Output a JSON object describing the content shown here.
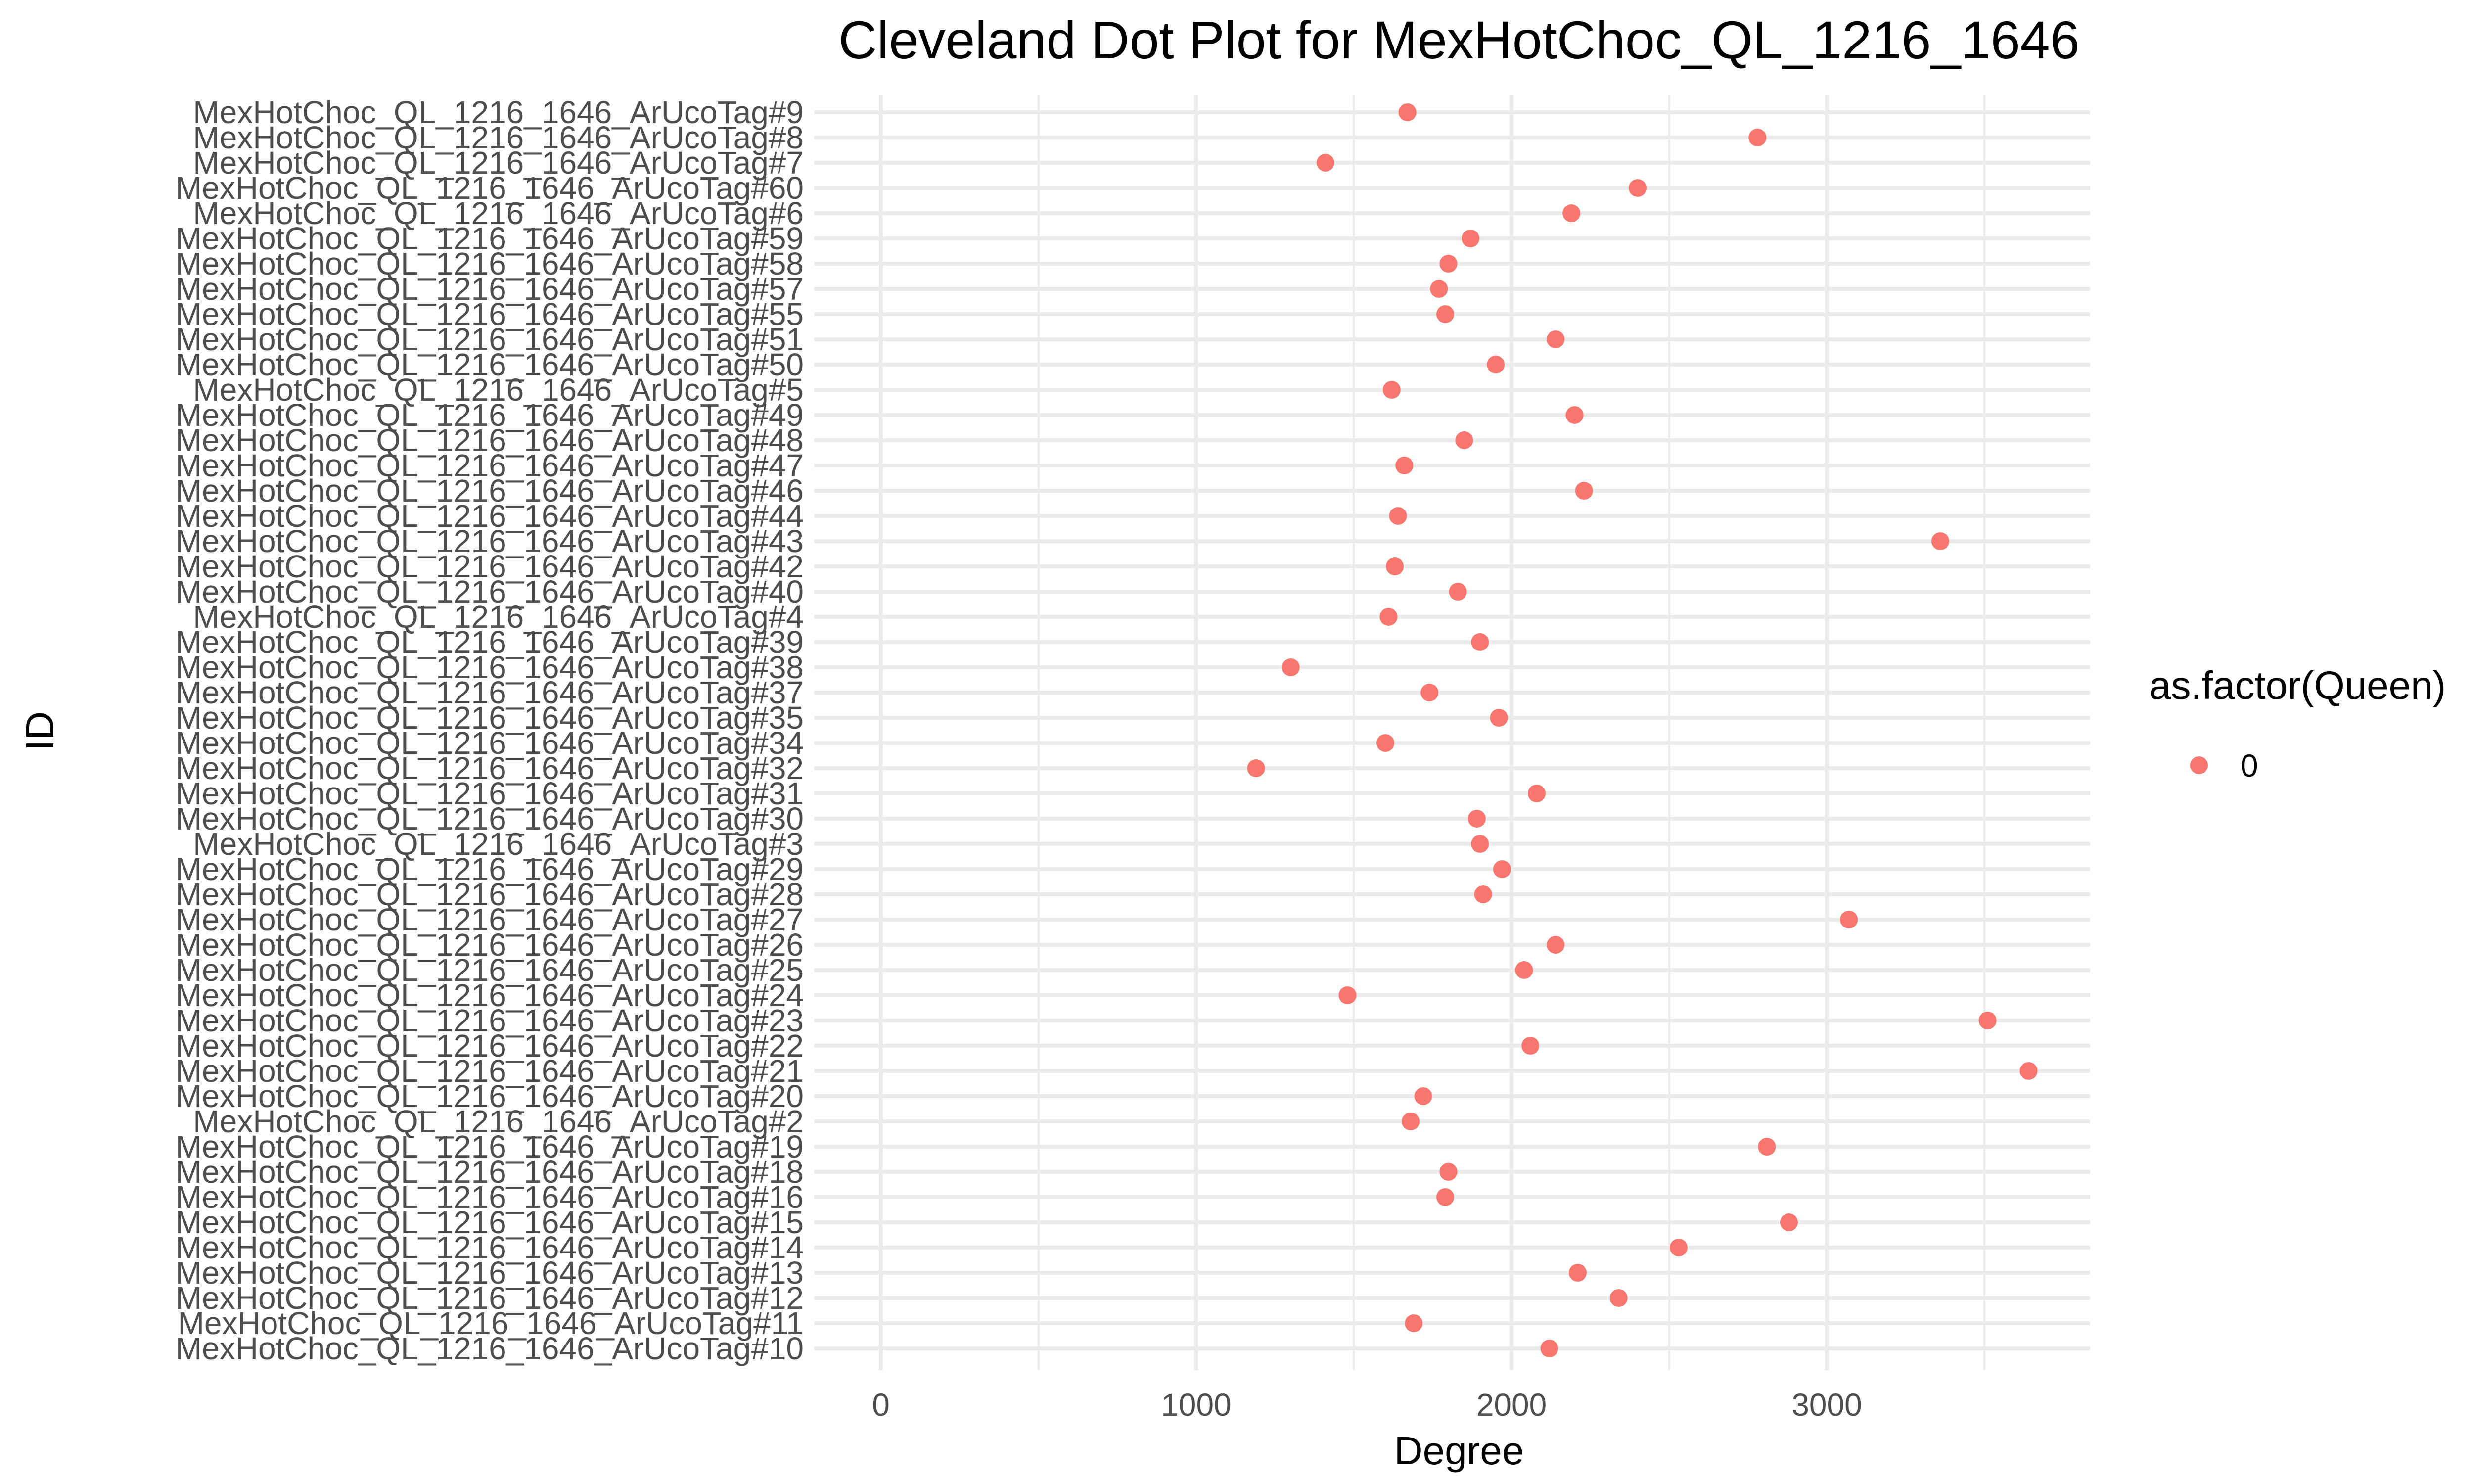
{
  "chart_data": {
    "type": "scatter",
    "title": "Cleveland Dot Plot for MexHotChoc_QL_1216_1646",
    "xlabel": "Degree",
    "ylabel": "ID",
    "xlim": [
      0,
      3800
    ],
    "x_ticks": [
      0,
      1000,
      2000,
      3000
    ],
    "x_tick_labels": [
      "0",
      "1000",
      "2000",
      "3000"
    ],
    "grid": true,
    "legend": {
      "title": "as.factor(Queen)",
      "position": "right",
      "entries": [
        {
          "label": "0",
          "color": "#F8766D"
        }
      ]
    },
    "point_color": "#F8766D",
    "categories": [
      "MexHotChoc_QL_1216_1646_ArUcoTag#9",
      "MexHotChoc_QL_1216_1646_ArUcoTag#8",
      "MexHotChoc_QL_1216_1646_ArUcoTag#7",
      "MexHotChoc_QL_1216_1646_ArUcoTag#60",
      "MexHotChoc_QL_1216_1646_ArUcoTag#6",
      "MexHotChoc_QL_1216_1646_ArUcoTag#59",
      "MexHotChoc_QL_1216_1646_ArUcoTag#58",
      "MexHotChoc_QL_1216_1646_ArUcoTag#57",
      "MexHotChoc_QL_1216_1646_ArUcoTag#55",
      "MexHotChoc_QL_1216_1646_ArUcoTag#51",
      "MexHotChoc_QL_1216_1646_ArUcoTag#50",
      "MexHotChoc_QL_1216_1646_ArUcoTag#5",
      "MexHotChoc_QL_1216_1646_ArUcoTag#49",
      "MexHotChoc_QL_1216_1646_ArUcoTag#48",
      "MexHotChoc_QL_1216_1646_ArUcoTag#47",
      "MexHotChoc_QL_1216_1646_ArUcoTag#46",
      "MexHotChoc_QL_1216_1646_ArUcoTag#44",
      "MexHotChoc_QL_1216_1646_ArUcoTag#43",
      "MexHotChoc_QL_1216_1646_ArUcoTag#42",
      "MexHotChoc_QL_1216_1646_ArUcoTag#40",
      "MexHotChoc_QL_1216_1646_ArUcoTag#4",
      "MexHotChoc_QL_1216_1646_ArUcoTag#39",
      "MexHotChoc_QL_1216_1646_ArUcoTag#38",
      "MexHotChoc_QL_1216_1646_ArUcoTag#37",
      "MexHotChoc_QL_1216_1646_ArUcoTag#35",
      "MexHotChoc_QL_1216_1646_ArUcoTag#34",
      "MexHotChoc_QL_1216_1646_ArUcoTag#32",
      "MexHotChoc_QL_1216_1646_ArUcoTag#31",
      "MexHotChoc_QL_1216_1646_ArUcoTag#30",
      "MexHotChoc_QL_1216_1646_ArUcoTag#3",
      "MexHotChoc_QL_1216_1646_ArUcoTag#29",
      "MexHotChoc_QL_1216_1646_ArUcoTag#28",
      "MexHotChoc_QL_1216_1646_ArUcoTag#27",
      "MexHotChoc_QL_1216_1646_ArUcoTag#26",
      "MexHotChoc_QL_1216_1646_ArUcoTag#25",
      "MexHotChoc_QL_1216_1646_ArUcoTag#24",
      "MexHotChoc_QL_1216_1646_ArUcoTag#23",
      "MexHotChoc_QL_1216_1646_ArUcoTag#22",
      "MexHotChoc_QL_1216_1646_ArUcoTag#21",
      "MexHotChoc_QL_1216_1646_ArUcoTag#20",
      "MexHotChoc_QL_1216_1646_ArUcoTag#2",
      "MexHotChoc_QL_1216_1646_ArUcoTag#19",
      "MexHotChoc_QL_1216_1646_ArUcoTag#18",
      "MexHotChoc_QL_1216_1646_ArUcoTag#16",
      "MexHotChoc_QL_1216_1646_ArUcoTag#15",
      "MexHotChoc_QL_1216_1646_ArUcoTag#14",
      "MexHotChoc_QL_1216_1646_ArUcoTag#13",
      "MexHotChoc_QL_1216_1646_ArUcoTag#12",
      "MexHotChoc_QL_1216_1646_ArUcoTag#11",
      "MexHotChoc_QL_1216_1646_ArUcoTag#10"
    ],
    "values": [
      1670,
      2780,
      1410,
      2400,
      2190,
      1870,
      1800,
      1770,
      1790,
      2140,
      1950,
      1620,
      2200,
      1850,
      1660,
      2230,
      1640,
      3360,
      1630,
      1830,
      1610,
      1900,
      1300,
      1740,
      1960,
      1600,
      1190,
      2080,
      1890,
      1900,
      1970,
      1910,
      3070,
      2140,
      2040,
      1480,
      3510,
      2060,
      3640,
      1720,
      1680,
      2810,
      1800,
      1790,
      2880,
      2530,
      2210,
      2340,
      1690,
      2120
    ]
  }
}
